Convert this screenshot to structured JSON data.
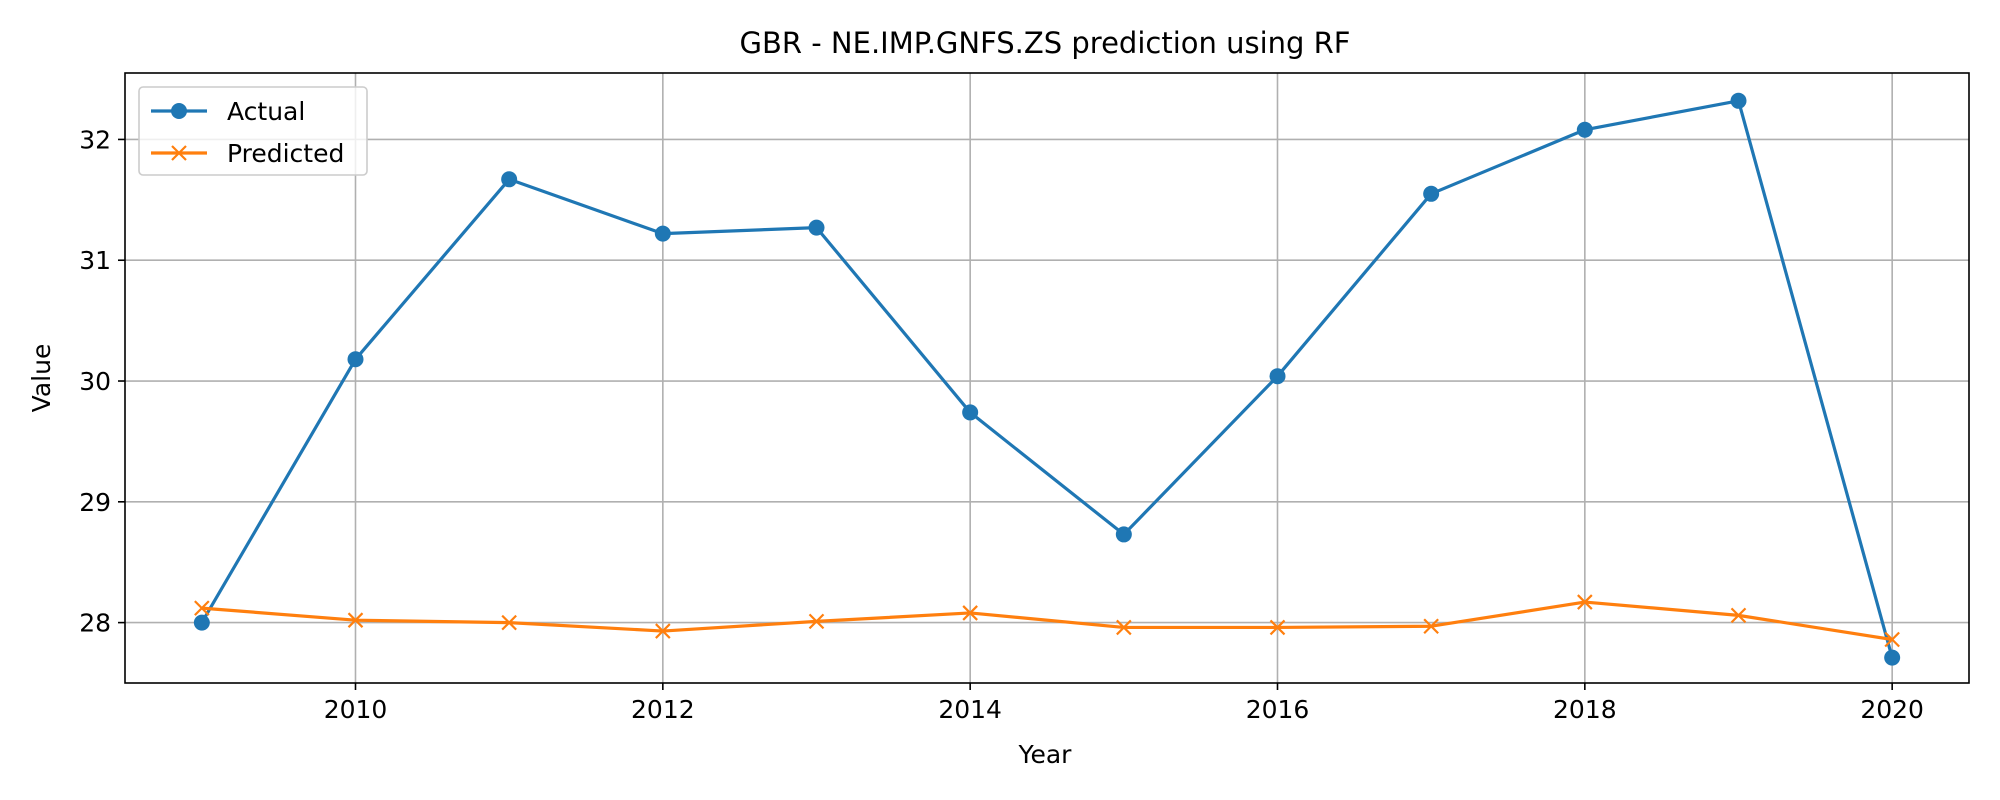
{
  "chart_data": {
    "type": "line",
    "title": "GBR - NE.IMP.GNFS.ZS prediction using RF",
    "xlabel": "Year",
    "ylabel": "Value",
    "xlim": [
      2008.5,
      2020.5
    ],
    "ylim": [
      27.5,
      32.55
    ],
    "xticks": [
      2010,
      2012,
      2014,
      2016,
      2018,
      2020
    ],
    "yticks": [
      28,
      29,
      30,
      31,
      32
    ],
    "grid": true,
    "legend_position": "top-left",
    "x": [
      2009,
      2010,
      2011,
      2012,
      2013,
      2014,
      2015,
      2016,
      2017,
      2018,
      2019,
      2020
    ],
    "series": [
      {
        "name": "Actual",
        "marker": "circle",
        "color": "#1f77b4",
        "values": [
          28.0,
          30.18,
          31.67,
          31.22,
          31.27,
          29.74,
          28.73,
          30.04,
          31.55,
          32.08,
          32.32,
          27.71
        ]
      },
      {
        "name": "Predicted",
        "marker": "x",
        "color": "#ff7f0e",
        "values": [
          28.12,
          28.02,
          28.0,
          27.93,
          28.01,
          28.08,
          27.96,
          27.96,
          27.97,
          28.17,
          28.06,
          27.86
        ]
      }
    ]
  }
}
